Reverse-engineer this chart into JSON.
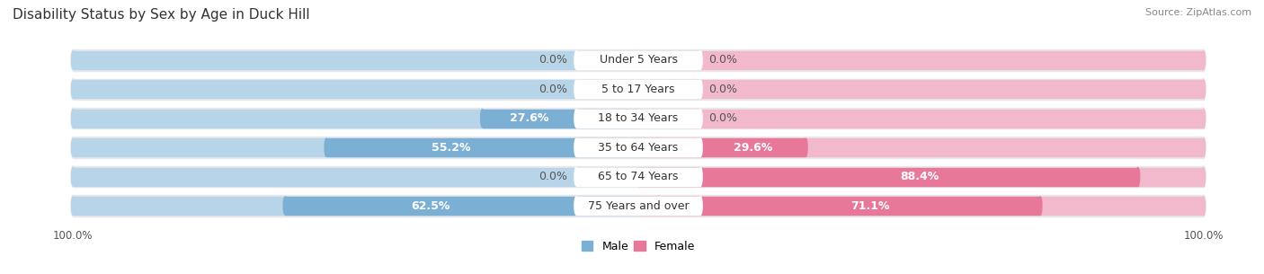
{
  "title": "Disability Status by Sex by Age in Duck Hill",
  "source": "Source: ZipAtlas.com",
  "categories": [
    "Under 5 Years",
    "5 to 17 Years",
    "18 to 34 Years",
    "35 to 64 Years",
    "65 to 74 Years",
    "75 Years and over"
  ],
  "male_values": [
    0.0,
    0.0,
    27.6,
    55.2,
    0.0,
    62.5
  ],
  "female_values": [
    0.0,
    0.0,
    0.0,
    29.6,
    88.4,
    71.1
  ],
  "male_color": "#7bafd4",
  "female_color": "#e8789a",
  "male_color_light": "#b8d4e8",
  "female_color_light": "#f2b8cc",
  "row_bg_color": "#e8e8ec",
  "row_gap_color": "#ffffff",
  "max_val": 100.0,
  "title_fontsize": 11,
  "label_fontsize": 9,
  "tick_fontsize": 8.5,
  "source_fontsize": 8,
  "cat_fontsize": 9
}
